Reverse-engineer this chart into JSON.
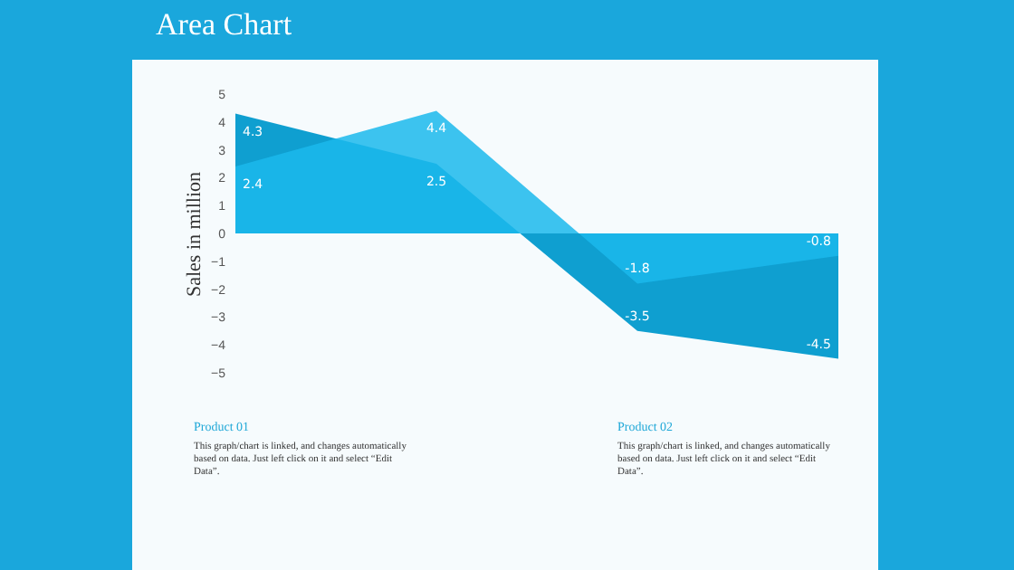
{
  "chart_data": {
    "type": "area",
    "title": "Area Chart",
    "ylabel": "Sales in million",
    "categories": [
      null,
      null,
      null,
      null
    ],
    "series": [
      {
        "color": "#0f9fd0",
        "values": [
          4.3,
          2.5,
          -3.5,
          -4.5
        ]
      },
      {
        "color": "#1bb9ec",
        "values": [
          2.4,
          4.4,
          -1.8,
          -0.8
        ]
      }
    ],
    "ylim": [
      -5,
      5
    ],
    "yticks": [
      -5,
      -4,
      -3,
      -2,
      -1,
      0,
      1,
      2,
      3,
      4,
      5
    ],
    "data_labels": true,
    "annotations": [
      "Product 01",
      "This graph/chart is linked, and changes automatically based on data. Just left click on it and select “Edit Data”.",
      "Product 02",
      "This graph/chart is linked, and changes automatically based on data. Just left click on it and select “Edit Data”."
    ]
  }
}
